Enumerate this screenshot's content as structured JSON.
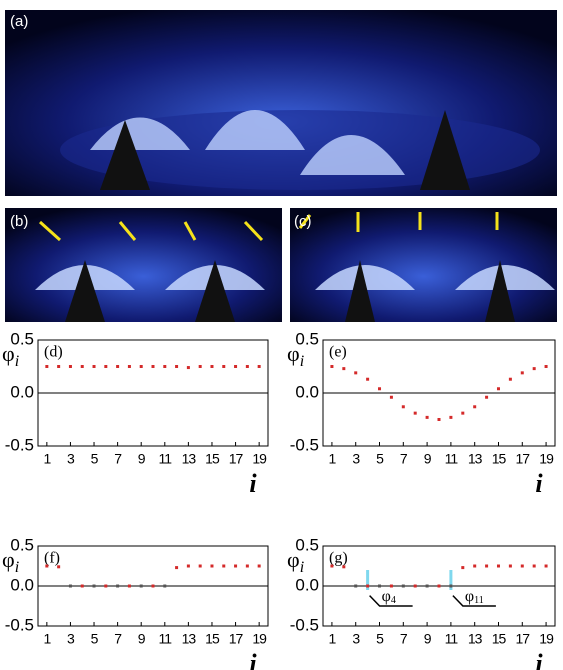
{
  "figure_panels": [
    {
      "label": "(a)"
    },
    {
      "label": "(b)"
    },
    {
      "label": "(c)"
    }
  ],
  "chart_data": [
    {
      "type": "scatter",
      "panel": "(d)",
      "ylabel": "φ",
      "ylabel_sub": "i",
      "xlabel": "i",
      "x": [
        1,
        2,
        3,
        4,
        5,
        6,
        7,
        8,
        9,
        10,
        11,
        12,
        13,
        14,
        15,
        16,
        17,
        18,
        19
      ],
      "values": [
        0.25,
        0.25,
        0.25,
        0.25,
        0.25,
        0.25,
        0.25,
        0.25,
        0.25,
        0.25,
        0.25,
        0.25,
        0.24,
        0.25,
        0.25,
        0.25,
        0.25,
        0.25,
        0.25
      ],
      "color": "#d42a2a",
      "zero_line": true,
      "xlim": [
        0.25,
        19.75
      ],
      "xticks": [
        1,
        3,
        5,
        7,
        9,
        11,
        13,
        15,
        17,
        19
      ],
      "ylim": [
        -0.5,
        0.5
      ],
      "yticks": [
        -0.5,
        {
          "value": 0,
          "label": "0.0"
        },
        0.5
      ]
    },
    {
      "type": "scatter",
      "panel": "(e)",
      "ylabel": "φ",
      "ylabel_sub": "i",
      "xlabel": "i",
      "x": [
        1,
        2,
        3,
        4,
        5,
        6,
        7,
        8,
        9,
        10,
        11,
        12,
        13,
        14,
        15,
        16,
        17,
        18,
        19
      ],
      "values": [
        0.25,
        0.23,
        0.19,
        0.13,
        0.04,
        -0.04,
        -0.13,
        -0.19,
        -0.23,
        -0.25,
        -0.23,
        -0.19,
        -0.13,
        -0.04,
        0.04,
        0.13,
        0.19,
        0.23,
        0.25
      ],
      "color": "#d42a2a",
      "zero_line": true,
      "xlim": [
        0.25,
        19.75
      ],
      "xticks": [
        1,
        3,
        5,
        7,
        9,
        11,
        13,
        15,
        17,
        19
      ],
      "ylim": [
        -0.5,
        0.5
      ],
      "yticks": [
        -0.5,
        {
          "value": 0,
          "label": "0.0"
        },
        0.5
      ]
    },
    {
      "type": "scatter",
      "panel": "(f)",
      "ylabel": "φ",
      "ylabel_sub": "i",
      "xlabel": "i",
      "x": [
        1,
        2,
        3,
        4,
        5,
        6,
        7,
        8,
        9,
        10,
        11,
        12,
        13,
        14,
        15,
        16,
        17,
        18,
        19
      ],
      "values": [
        0.25,
        0.24,
        0,
        0,
        0,
        0,
        0,
        0,
        0,
        0,
        0,
        0.23,
        0.25,
        0.25,
        0.25,
        0.25,
        0.25,
        0.25,
        0.25
      ],
      "colors": [
        "#d42a2a",
        "#d42a2a",
        "#555555",
        "#d42a2a",
        "#555555",
        "#d42a2a",
        "#555555",
        "#d42a2a",
        "#555555",
        "#d42a2a",
        "#555555",
        "#d42a2a",
        "#d42a2a",
        "#d42a2a",
        "#d42a2a",
        "#d42a2a",
        "#d42a2a",
        "#d42a2a",
        "#d42a2a"
      ],
      "zero_line": true,
      "xlim": [
        0.25,
        19.75
      ],
      "xticks": [
        1,
        3,
        5,
        7,
        9,
        11,
        13,
        15,
        17,
        19
      ],
      "ylim": [
        -0.5,
        0.5
      ],
      "yticks": [
        -0.5,
        {
          "value": 0,
          "label": "0.0"
        },
        0.5
      ]
    },
    {
      "type": "scatter",
      "panel": "(g)",
      "ylabel": "φ",
      "ylabel_sub": "i",
      "xlabel": "i",
      "x": [
        1,
        2,
        3,
        4,
        5,
        6,
        7,
        8,
        9,
        10,
        11,
        12,
        13,
        14,
        15,
        16,
        17,
        18,
        19
      ],
      "values": [
        0.25,
        0.24,
        0,
        0,
        0,
        0,
        0,
        0,
        0,
        0,
        0,
        0.23,
        0.25,
        0.25,
        0.25,
        0.25,
        0.25,
        0.25,
        0.25
      ],
      "colors": [
        "#d42a2a",
        "#d42a2a",
        "#555555",
        "#d42a2a",
        "#555555",
        "#d42a2a",
        "#555555",
        "#d42a2a",
        "#555555",
        "#d42a2a",
        "#555555",
        "#d42a2a",
        "#d42a2a",
        "#d42a2a",
        "#d42a2a",
        "#d42a2a",
        "#d42a2a",
        "#d42a2a",
        "#d42a2a"
      ],
      "zero_line": true,
      "annotations": [
        {
          "x": 4,
          "symbol": "φ",
          "subscript": "4"
        },
        {
          "x": 11,
          "symbol": "φ",
          "subscript": "11"
        }
      ],
      "highlight_color": "#7fd8ee",
      "xlim": [
        0.25,
        19.75
      ],
      "xticks": [
        1,
        3,
        5,
        7,
        9,
        11,
        13,
        15,
        17,
        19
      ],
      "ylim": [
        -0.5,
        0.5
      ],
      "yticks": [
        -0.5,
        {
          "value": 0,
          "label": "0.0"
        },
        0.5
      ]
    }
  ]
}
